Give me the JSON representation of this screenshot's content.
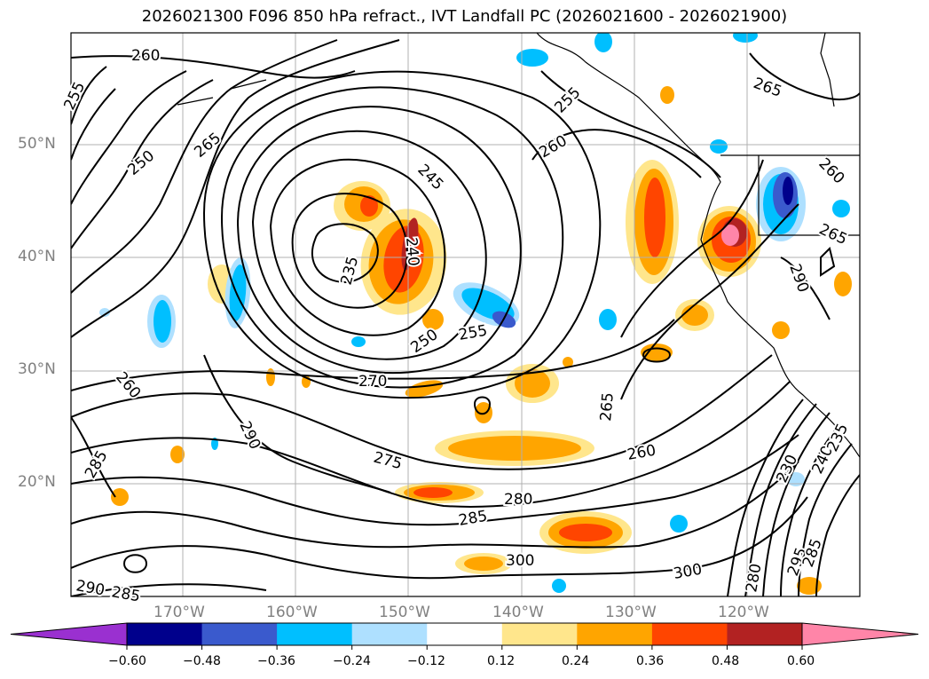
{
  "title": "2026021300 F096 850 hPa refract., IVT Landfall PC (2026021600 - 2026021900)",
  "lat_labels": [
    "50°N",
    "40°N",
    "30°N",
    "20°N"
  ],
  "lon_labels": [
    "170°W",
    "160°W",
    "150°W",
    "140°W",
    "130°W",
    "120°W"
  ],
  "contour_labels": [
    "260",
    "255",
    "250",
    "265",
    "245",
    "240",
    "235",
    "250",
    "255",
    "270",
    "260",
    "290",
    "285",
    "275",
    "280",
    "285",
    "300",
    "300",
    "290",
    "285",
    "265",
    "260",
    "255",
    "260",
    "260",
    "265",
    "265",
    "290",
    "295",
    "280",
    "285",
    "230",
    "240",
    "235"
  ],
  "colorbar": {
    "ticks": [
      "−0.60",
      "−0.48",
      "−0.36",
      "−0.24",
      "−0.12",
      "0.12",
      "0.24",
      "0.36",
      "0.48",
      "0.60"
    ],
    "colors": [
      "#9a30d0",
      "#00008c",
      "#3a5acd",
      "#00bfff",
      "#aee0ff",
      "#ffffff",
      "#ffe68c",
      "#ffa500",
      "#ff4500",
      "#b22222",
      "#ff85a8"
    ]
  },
  "fill_colors": {
    "pos1": "#ffe68c",
    "pos2": "#ffa500",
    "pos3": "#ff4500",
    "pos4": "#b22222",
    "pos5": "#ff85a8",
    "neg1": "#aee0ff",
    "neg2": "#00bfff",
    "neg3": "#3a5acd",
    "neg4": "#00008c"
  }
}
